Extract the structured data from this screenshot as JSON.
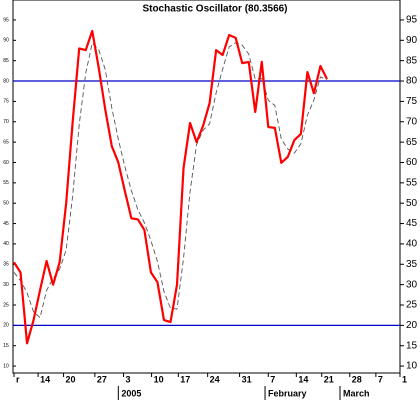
{
  "chart_data": {
    "type": "line",
    "title": "Stochastic Oscillator (80.3566)",
    "x": [
      0,
      1,
      2,
      3,
      4,
      5,
      6,
      7,
      8,
      9,
      10,
      11,
      12,
      13,
      14,
      15,
      16,
      17,
      18,
      19,
      20,
      21,
      22,
      23,
      24,
      25,
      26,
      27,
      28,
      29,
      30,
      31,
      32,
      33,
      34,
      35,
      36,
      37,
      38,
      39,
      40,
      41,
      42,
      43,
      44,
      45,
      46,
      47,
      48
    ],
    "series": [
      {
        "color": "#ff0000",
        "width": 2.2,
        "dashed": false,
        "values": [
          35.5,
          33,
          15.6,
          21.3,
          28.7,
          35.8,
          30,
          35.5,
          50,
          70,
          88,
          87.6,
          92.3,
          83.2,
          73,
          64,
          60,
          53,
          46.3,
          46,
          43.4,
          33,
          30.6,
          21.3,
          20.8,
          30,
          58.6,
          69.7,
          65,
          69,
          74.6,
          87.6,
          86.4,
          91.3,
          90.6,
          84.4,
          84.7,
          72.4,
          84.7,
          68.7,
          68.5,
          59.9,
          61.4,
          65.5,
          67,
          82.2,
          77,
          83.7,
          80.5
        ]
      },
      {
        "color": "#555555",
        "width": 0.9,
        "dashed": true,
        "values": [
          33,
          31,
          28,
          23.3,
          21.9,
          28.6,
          31.5,
          33.8,
          38.5,
          51.8,
          69.3,
          81.9,
          89.3,
          87.7,
          82.8,
          73.4,
          65.7,
          59,
          53.1,
          48.4,
          45.2,
          40.8,
          35.7,
          28.3,
          24.2,
          24,
          36.5,
          52.8,
          64.4,
          67.9,
          69.5,
          77.1,
          82.9,
          88.4,
          89.4,
          88.8,
          86.6,
          80.5,
          80.6,
          75.3,
          74,
          65.7,
          63.3,
          62.3,
          64.6,
          71.6,
          75.4,
          81,
          80.4
        ]
      }
    ],
    "reference_lines": [
      80,
      20
    ],
    "reference_color": "#0000cc",
    "xlim": [
      0,
      59.2
    ],
    "xticks": [
      {
        "value": 0,
        "label": "r"
      },
      {
        "value": 3.7,
        "label": "14"
      },
      {
        "value": 7.6,
        "label": "20"
      },
      {
        "value": 12.4,
        "label": "27"
      },
      {
        "value": 16.8,
        "label": "3"
      },
      {
        "value": 21.1,
        "label": "10"
      },
      {
        "value": 25.2,
        "label": "17"
      },
      {
        "value": 29.7,
        "label": "24"
      },
      {
        "value": 34.6,
        "label": "31"
      },
      {
        "value": 39,
        "label": "7"
      },
      {
        "value": 43.3,
        "label": "14"
      },
      {
        "value": 47.2,
        "label": "21"
      },
      {
        "value": 51.5,
        "label": "28"
      },
      {
        "value": 55.5,
        "label": "7"
      },
      {
        "value": 59.2,
        "label": "1"
      }
    ],
    "month_ticks": [
      {
        "value": 16,
        "label": "2005"
      },
      {
        "value": 38.5,
        "label": "February"
      },
      {
        "value": 50,
        "label": "March"
      }
    ],
    "ylim": [
      8.3,
      99.9
    ],
    "yticks": [
      10,
      15,
      20,
      25,
      30,
      35,
      40,
      45,
      50,
      55,
      60,
      65,
      70,
      75,
      80,
      85,
      90,
      95
    ]
  }
}
